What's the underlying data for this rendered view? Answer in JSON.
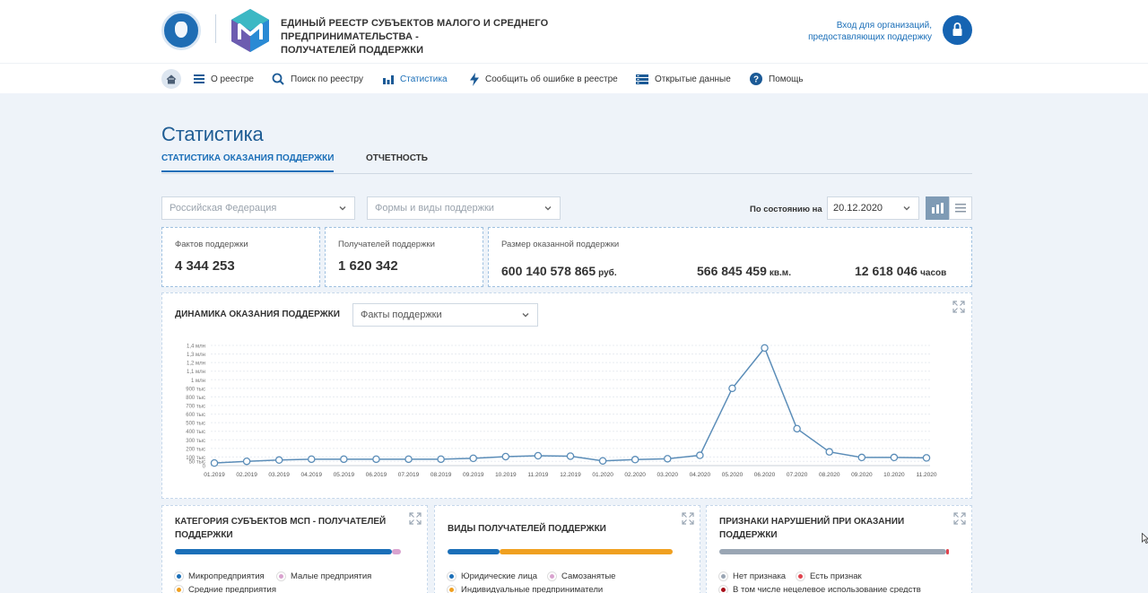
{
  "header": {
    "title_line1": "ЕДИНЫЙ РЕЕСТР СУБЪЕКТОВ МАЛОГО И СРЕДНЕГО ПРЕДПРИНИМАТЕЛЬСТВА -",
    "title_line2": "ПОЛУЧАТЕЛЕЙ ПОДДЕРЖКИ",
    "login_line1": "Вход для организаций,",
    "login_line2": "предоставляющих поддержку"
  },
  "nav": {
    "items": [
      {
        "label": "О реестре",
        "icon": "list-icon"
      },
      {
        "label": "Поиск по реестру",
        "icon": "search-icon"
      },
      {
        "label": "Статистика",
        "icon": "bar-chart-icon"
      },
      {
        "label": "Сообщить об ошибке в реестре",
        "icon": "lightning-icon"
      },
      {
        "label": "Открытые данные",
        "icon": "database-icon"
      },
      {
        "label": "Помощь",
        "icon": "help-icon"
      }
    ]
  },
  "page": {
    "title": "Статистика",
    "tabs": [
      "СТАТИСТИКА ОКАЗАНИЯ ПОДДЕРЖКИ",
      "ОТЧЕТНОСТЬ"
    ]
  },
  "filters": {
    "region_placeholder": "Российская Федерация",
    "support_placeholder": "Формы и виды поддержки",
    "asof_label": "По состоянию на",
    "date": "20.12.2020"
  },
  "stats": {
    "facts_label": "Фактов поддержки",
    "facts_value": "4 344 253",
    "recipients_label": "Получателей поддержки",
    "recipients_value": "1 620 342",
    "size_label": "Размер оказанной поддержки",
    "money_value": "600 140 578 865",
    "money_unit": "руб.",
    "area_value": "566 845 459",
    "area_unit": "кв.м.",
    "hours_value": "12 618 046",
    "hours_unit": "часов"
  },
  "chart": {
    "title": "ДИНАМИКА ОКАЗАНИЯ ПОДДЕРЖКИ",
    "metric_select": "Факты поддержки"
  },
  "chart_data": {
    "type": "line",
    "title": "ДИНАМИКА ОКАЗАНИЯ ПОДДЕРЖКИ",
    "xlabel": "",
    "ylabel": "",
    "ylim": [
      0,
      1400000
    ],
    "y_ticks": [
      {
        "v": 0,
        "label": "0"
      },
      {
        "v": 50000,
        "label": "50 тыс"
      },
      {
        "v": 100000,
        "label": "100 тыс"
      },
      {
        "v": 200000,
        "label": "200 тыс"
      },
      {
        "v": 300000,
        "label": "300 тыс"
      },
      {
        "v": 400000,
        "label": "400 тыс"
      },
      {
        "v": 500000,
        "label": "500 тыс"
      },
      {
        "v": 600000,
        "label": "600 тыс"
      },
      {
        "v": 700000,
        "label": "700 тыс"
      },
      {
        "v": 800000,
        "label": "800 тыс"
      },
      {
        "v": 900000,
        "label": "900 тыс"
      },
      {
        "v": 1000000,
        "label": "1 млн"
      },
      {
        "v": 1100000,
        "label": "1,1 млн"
      },
      {
        "v": 1200000,
        "label": "1,2 млн"
      },
      {
        "v": 1300000,
        "label": "1,3 млн"
      },
      {
        "v": 1400000,
        "label": "1,4 млн"
      }
    ],
    "categories": [
      "01.2019",
      "02.2019",
      "03.2019",
      "04.2019",
      "05.2019",
      "06.2019",
      "07.2019",
      "08.2019",
      "09.2019",
      "10.2019",
      "11.2019",
      "12.2019",
      "01.2020",
      "02.2020",
      "03.2020",
      "04.2020",
      "05.2020",
      "06.2020",
      "07.2020",
      "08.2020",
      "09.2020",
      "10.2020",
      "11.2020"
    ],
    "values": [
      30000,
      50000,
      65000,
      75000,
      75000,
      75000,
      75000,
      75000,
      85000,
      105000,
      115000,
      110000,
      55000,
      70000,
      80000,
      120000,
      900000,
      1370000,
      430000,
      160000,
      95000,
      95000,
      90000
    ]
  },
  "bottom_cards": [
    {
      "title": "КАТЕГОРИЯ СУБЪЕКТОВ МСП - ПОЛУЧАТЕЛЕЙ ПОДДЕРЖКИ",
      "legend": [
        "Микропредприятия",
        "Малые предприятия",
        "Средние предприятия"
      ]
    },
    {
      "title": "ВИДЫ ПОЛУЧАТЕЛЕЙ ПОДДЕРЖКИ",
      "legend": [
        "Юридические лица",
        "Самозанятые",
        "Индивидуальные предприниматели"
      ]
    },
    {
      "title": "ПРИЗНАКИ НАРУШЕНИЙ ПРИ ОКАЗАНИИ ПОДДЕРЖКИ",
      "legend": [
        "Нет признака",
        "Есть признак",
        "В том числе нецелевое использование средств"
      ]
    }
  ],
  "colors": {
    "brand_blue": "#1b6fb8",
    "dark_blue": "#1664b2",
    "orange": "#f0a020",
    "pink": "#d9a3cf",
    "gray": "#9aa6b4",
    "red": "#e0444f",
    "dark_red": "#a80f1a"
  }
}
